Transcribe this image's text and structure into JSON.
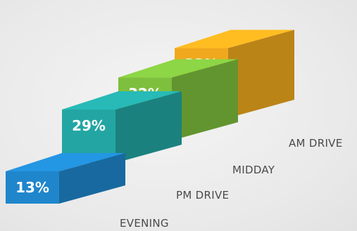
{
  "chart_data": {
    "type": "bar",
    "categories": [
      "EVENING",
      "PM DRIVE",
      "MIDDAY",
      "AM DRIVE"
    ],
    "values": [
      13,
      29,
      32,
      33
    ],
    "value_labels": [
      "13%",
      "29%",
      "32%",
      "33%"
    ],
    "colors": [
      "#1f86cc",
      "#23a6a3",
      "#7ebf3e",
      "#f0a91e"
    ],
    "title": "",
    "xlabel": "",
    "ylabel": ""
  }
}
